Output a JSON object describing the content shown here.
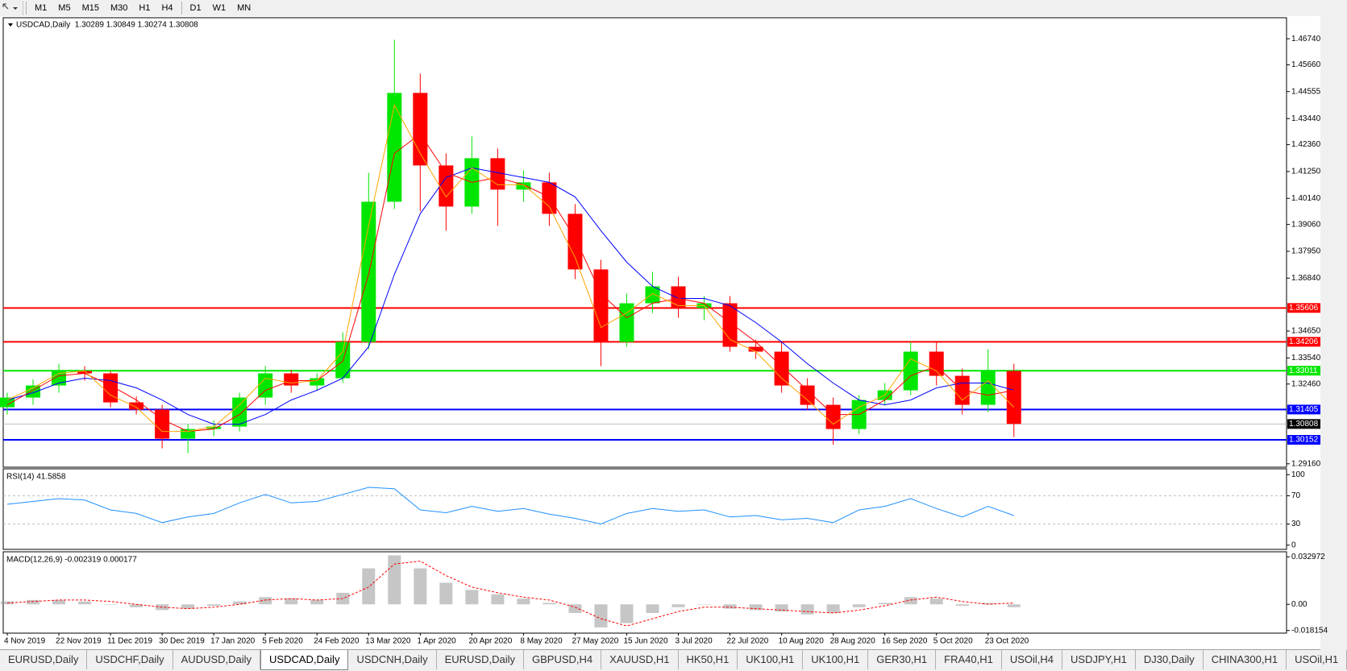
{
  "toolbar": {
    "timeframes": [
      "M1",
      "M5",
      "M15",
      "M30",
      "H1",
      "H4",
      "D1",
      "W1",
      "MN"
    ]
  },
  "chart_data": [
    {
      "type": "candlestick",
      "title": "USDCAD,Daily  1.30289 1.30849 1.30274 1.30808",
      "categories": [
        "4 Nov 2019",
        null,
        "22 Nov 2019",
        null,
        "11 Dec 2019",
        null,
        "30 Dec 2019",
        null,
        "17 Jan 2020",
        null,
        "5 Feb 2020",
        null,
        "24 Feb 2020",
        null,
        "13 Mar 2020",
        null,
        "1 Apr 2020",
        null,
        "20 Apr 2020",
        null,
        "8 May 2020",
        null,
        "27 May 2020",
        null,
        "15 Jun 2020",
        null,
        "3 Jul 2020",
        null,
        "22 Jul 2020",
        null,
        "10 Aug 2020",
        null,
        "28 Aug 2020",
        null,
        "16 Sep 2020",
        null,
        "5 Oct 2020",
        null,
        "23 Oct 2020",
        null
      ],
      "open": [
        1.315,
        1.319,
        1.324,
        1.33,
        1.329,
        1.317,
        1.314,
        1.302,
        1.306,
        1.307,
        1.319,
        1.329,
        1.324,
        1.327,
        1.342,
        1.4,
        1.445,
        1.415,
        1.398,
        1.418,
        1.405,
        1.408,
        1.395,
        1.372,
        1.342,
        1.358,
        1.365,
        1.356,
        1.358,
        1.34,
        1.338,
        1.324,
        1.316,
        1.306,
        1.318,
        1.322,
        1.338,
        1.328,
        1.316,
        1.33
      ],
      "high": [
        1.321,
        1.3265,
        1.333,
        1.332,
        1.33,
        1.3195,
        1.316,
        1.308,
        1.3095,
        1.321,
        1.332,
        1.3305,
        1.329,
        1.346,
        1.412,
        1.467,
        1.453,
        1.42,
        1.427,
        1.422,
        1.413,
        1.412,
        1.399,
        1.376,
        1.362,
        1.371,
        1.369,
        1.361,
        1.361,
        1.343,
        1.342,
        1.327,
        1.319,
        1.32,
        1.325,
        1.342,
        1.342,
        1.331,
        1.339,
        1.333
      ],
      "low": [
        1.312,
        1.316,
        1.321,
        1.326,
        1.315,
        1.312,
        1.298,
        1.296,
        1.303,
        1.305,
        1.316,
        1.321,
        1.322,
        1.325,
        1.339,
        1.397,
        1.396,
        1.388,
        1.395,
        1.39,
        1.4,
        1.39,
        1.368,
        1.332,
        1.34,
        1.354,
        1.352,
        1.351,
        1.338,
        1.335,
        1.321,
        1.314,
        1.2995,
        1.304,
        1.316,
        1.32,
        1.324,
        1.312,
        1.313,
        1.3027
      ],
      "close": [
        1.319,
        1.324,
        1.33,
        1.329,
        1.317,
        1.314,
        1.302,
        1.306,
        1.307,
        1.319,
        1.329,
        1.324,
        1.327,
        1.342,
        1.4,
        1.445,
        1.415,
        1.398,
        1.418,
        1.405,
        1.408,
        1.395,
        1.372,
        1.342,
        1.358,
        1.365,
        1.356,
        1.358,
        1.34,
        1.338,
        1.324,
        1.316,
        1.306,
        1.318,
        1.322,
        1.338,
        1.328,
        1.316,
        1.33,
        1.3081
      ],
      "up_color": "#00e600",
      "down_color": "#ff0000",
      "moving_averages": [
        {
          "color": "#0000ff",
          "values": [
            1.318,
            1.321,
            1.325,
            1.327,
            1.326,
            1.323,
            1.318,
            1.312,
            1.308,
            1.308,
            1.312,
            1.318,
            1.322,
            1.327,
            1.34,
            1.37,
            1.395,
            1.41,
            1.414,
            1.412,
            1.41,
            1.408,
            1.402,
            1.388,
            1.375,
            1.365,
            1.36,
            1.36,
            1.357,
            1.35,
            1.342,
            1.333,
            1.325,
            1.318,
            1.316,
            1.318,
            1.323,
            1.325,
            1.325,
            1.322
          ]
        },
        {
          "color": "#ff0000",
          "values": [
            1.316,
            1.322,
            1.328,
            1.329,
            1.324,
            1.318,
            1.31,
            1.305,
            1.306,
            1.312,
            1.322,
            1.326,
            1.326,
            1.334,
            1.37,
            1.42,
            1.428,
            1.412,
            1.408,
            1.41,
            1.407,
            1.402,
            1.385,
            1.362,
            1.352,
            1.358,
            1.36,
            1.358,
            1.35,
            1.342,
            1.332,
            1.322,
            1.312,
            1.312,
            1.318,
            1.328,
            1.332,
            1.322,
            1.32,
            1.322
          ]
        },
        {
          "color": "#ffa500",
          "values": [
            1.318,
            1.323,
            1.329,
            1.33,
            1.32,
            1.315,
            1.305,
            1.305,
            1.307,
            1.316,
            1.327,
            1.325,
            1.326,
            1.338,
            1.39,
            1.44,
            1.42,
            1.402,
            1.414,
            1.407,
            1.407,
            1.398,
            1.377,
            1.348,
            1.354,
            1.362,
            1.357,
            1.357,
            1.343,
            1.338,
            1.327,
            1.318,
            1.308,
            1.315,
            1.32,
            1.335,
            1.33,
            1.318,
            1.326,
            1.315
          ]
        }
      ],
      "levels": [
        {
          "value": 1.35606,
          "color": "#ff0000"
        },
        {
          "value": 1.34206,
          "color": "#ff0000"
        },
        {
          "value": 1.33011,
          "color": "#00e600"
        },
        {
          "value": 1.31405,
          "color": "#0000ff"
        },
        {
          "value": 1.30808,
          "color": "#c0c0c0",
          "label_color": "#000000"
        },
        {
          "value": 1.30152,
          "color": "#0000ff"
        }
      ],
      "ylim": [
        1.2902,
        1.4761
      ],
      "yticks": [
        {
          "value": 1.4674,
          "label": "1.46740"
        },
        {
          "value": 1.4566,
          "label": "1.45660"
        },
        1.44555,
        {
          "value": 1.4344,
          "label": "1.43440"
        },
        {
          "value": 1.4236,
          "label": "1.42360"
        },
        {
          "value": 1.4125,
          "label": "1.41250"
        },
        {
          "value": 1.4014,
          "label": "1.40140"
        },
        {
          "value": 1.3906,
          "label": "1.39060"
        },
        {
          "value": 1.3795,
          "label": "1.37950"
        },
        {
          "value": 1.3684,
          "label": "1.36840"
        },
        {
          "value": 1.3465,
          "label": "1.34650"
        },
        {
          "value": 1.3354,
          "label": "1.33540"
        },
        {
          "value": 1.3246,
          "label": "1.32460"
        },
        {
          "value": 1.2916,
          "label": "1.29160"
        }
      ]
    },
    {
      "type": "line",
      "title": "RSI(14) 41.5858",
      "color": "#1e90ff",
      "values": [
        58,
        62,
        66,
        64,
        50,
        45,
        32,
        40,
        45,
        60,
        72,
        60,
        62,
        72,
        82,
        80,
        50,
        46,
        55,
        48,
        52,
        44,
        38,
        30,
        45,
        52,
        48,
        50,
        40,
        42,
        36,
        38,
        32,
        50,
        55,
        66,
        52,
        40,
        55,
        42
      ],
      "levels": [
        30,
        70
      ],
      "ylim": [
        -6,
        108.3
      ],
      "yticks": [
        0,
        30,
        70,
        100
      ]
    },
    {
      "type": "macd",
      "title": "MACD(12,26,9) -0.002319 0.000177",
      "histogram": [
        0.002,
        0.003,
        0.003,
        0.002,
        0.0,
        -0.002,
        -0.004,
        -0.003,
        -0.001,
        0.002,
        0.005,
        0.004,
        0.003,
        0.008,
        0.025,
        0.034,
        0.025,
        0.015,
        0.01,
        0.007,
        0.004,
        0.001,
        -0.006,
        -0.016,
        -0.013,
        -0.006,
        -0.002,
        0.0,
        -0.003,
        -0.004,
        -0.005,
        -0.007,
        -0.006,
        -0.002,
        0.001,
        0.005,
        0.004,
        -0.001,
        0.001,
        -0.002
      ],
      "signal": [
        0.001,
        0.002,
        0.003,
        0.003,
        0.002,
        0.0,
        -0.002,
        -0.003,
        -0.002,
        0.0,
        0.003,
        0.004,
        0.003,
        0.004,
        0.012,
        0.028,
        0.03,
        0.02,
        0.012,
        0.008,
        0.005,
        0.003,
        -0.002,
        -0.01,
        -0.015,
        -0.01,
        -0.005,
        -0.002,
        -0.002,
        -0.003,
        -0.004,
        -0.005,
        -0.006,
        -0.004,
        -0.001,
        0.003,
        0.005,
        0.002,
        0.0,
        0.001
      ],
      "histogram_color": "#a0a0a0",
      "signal_color": "#ff0000",
      "ylim": [
        -0.02,
        0.0365
      ],
      "yticks": [
        0.032972,
        {
          "value": 0,
          "label": "0.00"
        },
        -0.018154
      ]
    }
  ],
  "tabs": [
    "EURUSD,Daily",
    "USDCHF,Daily",
    "AUDUSD,Daily",
    "USDCAD,Daily",
    "USDCNH,Daily",
    "EURUSD,Daily",
    "GBPUSD,H4",
    "XAUUSD,H1",
    "HK50,H1",
    "UK100,H1",
    "UK100,H1",
    "GER30,H1",
    "FRA40,H1",
    "USOil,H4",
    "USDJPY,H1",
    "DJ30,Daily",
    "CHINA300,H1",
    "USOil,H1"
  ],
  "active_tab": 3
}
